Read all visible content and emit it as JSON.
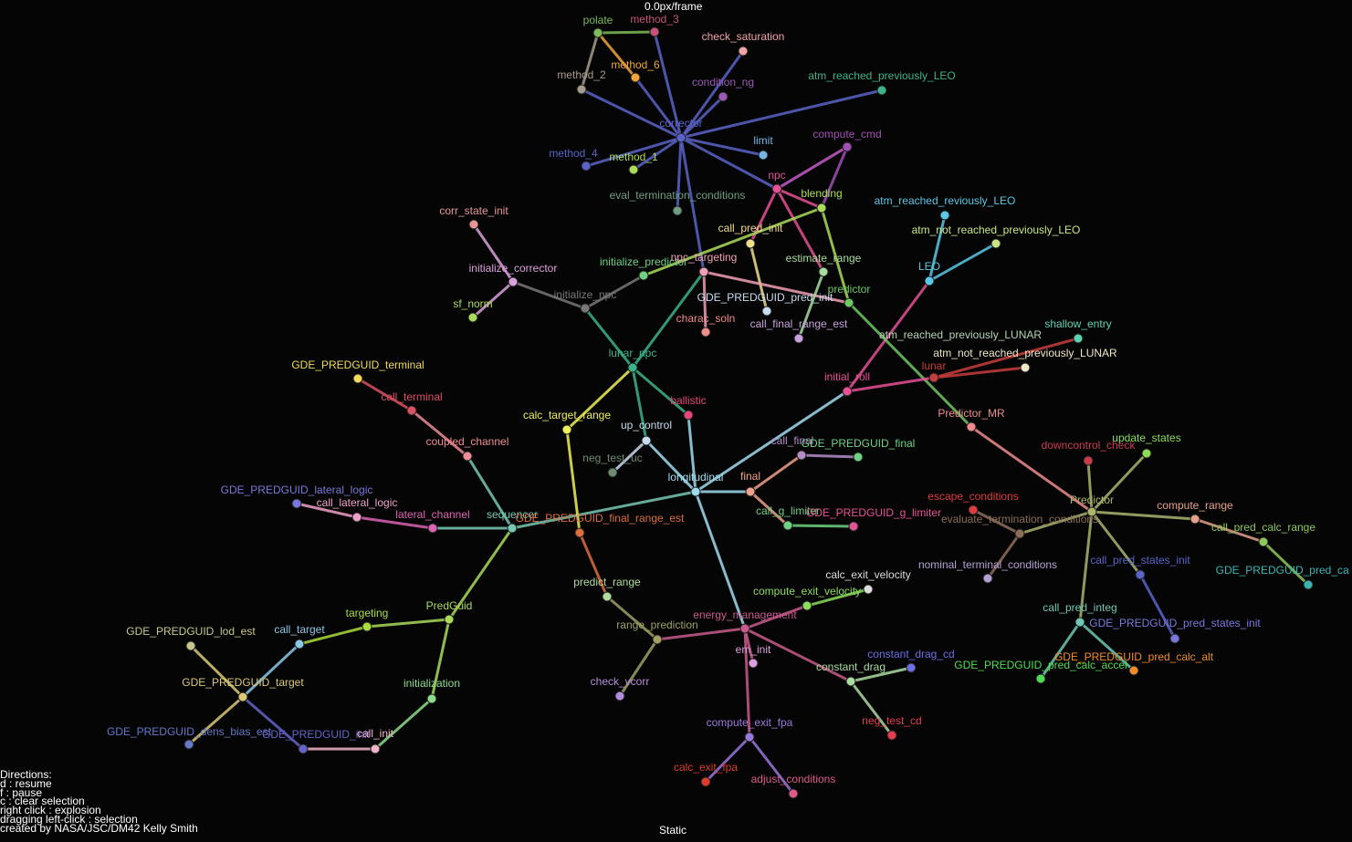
{
  "hud": {
    "speed": "0.0px/frame",
    "mode": "Static",
    "directions": [
      "Directions:",
      "d : resume",
      "f : pause",
      "c : clear selection",
      "right click : explosion",
      "dragging left-click : selection",
      "created by NASA/JSC/DM42 Kelly Smith"
    ]
  },
  "nodes": [
    {
      "id": "polate",
      "label": "polate",
      "color": "#7cba5a"
    },
    {
      "id": "method_3",
      "label": "method_3",
      "color": "#c8507a"
    },
    {
      "id": "check_saturation",
      "label": "check_saturation",
      "color": "#f2a4a8"
    },
    {
      "id": "method_6",
      "label": "method_6",
      "color": "#f0a43c"
    },
    {
      "id": "method_2",
      "label": "method_2",
      "color": "#a89c8c"
    },
    {
      "id": "condition_ng",
      "label": "condition_ng",
      "color": "#9a5ab4"
    },
    {
      "id": "atm_reached_previously_LEO",
      "label": "atm_reached_previously_LEO",
      "color": "#3cb48a"
    },
    {
      "id": "corrector",
      "label": "corrector",
      "color": "#5a64c8"
    },
    {
      "id": "compute_cmd",
      "label": "compute_cmd",
      "color": "#a050b4"
    },
    {
      "id": "limit",
      "label": "limit",
      "color": "#78b4e6"
    },
    {
      "id": "method_4",
      "label": "method_4",
      "color": "#5a64c8"
    },
    {
      "id": "method_1",
      "label": "method_1",
      "color": "#aadc5a"
    },
    {
      "id": "npc",
      "label": "npc",
      "color": "#e65096"
    },
    {
      "id": "blending",
      "label": "blending",
      "color": "#aadc5a"
    },
    {
      "id": "eval_termination_conditions",
      "label": "eval_termination_conditions",
      "color": "#6e9e82"
    },
    {
      "id": "atm_reached_reviously_LEO",
      "label": "atm_reached_reviously_LEO",
      "color": "#5ac8e6"
    },
    {
      "id": "corr_state_init",
      "label": "corr_state_init",
      "color": "#e69696"
    },
    {
      "id": "call_pred_init",
      "label": "call_pred_init",
      "color": "#f0dc8c"
    },
    {
      "id": "atm_not_reached_previously_LEO",
      "label": "atm_not_reached_previously_LEO",
      "color": "#c8e682"
    },
    {
      "id": "initialize_corrector",
      "label": "initialize_corrector",
      "color": "#dca0dc"
    },
    {
      "id": "initialize_predictor",
      "label": "initialize_predictor",
      "color": "#6ed282"
    },
    {
      "id": "npc_targeting",
      "label": "npc_targeting",
      "color": "#f0a0b4"
    },
    {
      "id": "estimate_range",
      "label": "estimate_range",
      "color": "#aadca0"
    },
    {
      "id": "LEO",
      "label": "LEO",
      "color": "#5ac8e6"
    },
    {
      "id": "predictor",
      "label": "predictor",
      "color": "#6ec864"
    },
    {
      "id": "initialize_npc",
      "label": "initialize_npc",
      "color": "#787878"
    },
    {
      "id": "sf_norm",
      "label": "sf_norm",
      "color": "#aadc5a"
    },
    {
      "id": "GDE_PREDGUID_pred_init",
      "label": "GDE_PREDGUID_pred_init",
      "color": "#c8dcf0"
    },
    {
      "id": "charac_soln",
      "label": "charac_soln",
      "color": "#f08c8c"
    },
    {
      "id": "call_final_range_est",
      "label": "call_final_range_est",
      "color": "#c8a0dc"
    },
    {
      "id": "shallow_entry",
      "label": "shallow_entry",
      "color": "#5ad2b4"
    },
    {
      "id": "lunar_npc",
      "label": "lunar_npc",
      "color": "#3cb48a"
    },
    {
      "id": "atm_reached_previously_LUNAR",
      "label": "atm_reached_previously_LUNAR",
      "color": "#b4d2b4"
    },
    {
      "id": "atm_not_reached_previously_LUNAR",
      "label": "atm_not_reached_previously_LUNAR",
      "color": "#f0e6c8"
    },
    {
      "id": "lunar",
      "label": "lunar",
      "color": "#c83c3c"
    },
    {
      "id": "GDE_PREDGUID_terminal",
      "label": "GDE_PREDGUID_terminal",
      "color": "#f0dc5a"
    },
    {
      "id": "initial_roll",
      "label": "initial_roll",
      "color": "#e65096"
    },
    {
      "id": "call_terminal",
      "label": "call_terminal",
      "color": "#dc5064"
    },
    {
      "id": "ballistic",
      "label": "ballistic",
      "color": "#e64678"
    },
    {
      "id": "Predictor_MR",
      "label": "Predictor_MR",
      "color": "#f08c8c"
    },
    {
      "id": "calc_target_range",
      "label": "calc_target_range",
      "color": "#f0f05a"
    },
    {
      "id": "up_control",
      "label": "up_control",
      "color": "#c8dcf0"
    },
    {
      "id": "update_states",
      "label": "update_states",
      "color": "#8cdc5a"
    },
    {
      "id": "downcontrol_check",
      "label": "downcontrol_check",
      "color": "#c83c50"
    },
    {
      "id": "coupled_channel",
      "label": "coupled_channel",
      "color": "#f08c96"
    },
    {
      "id": "call_final",
      "label": "call_final",
      "color": "#b48cc8"
    },
    {
      "id": "GDE_PREDGUID_final",
      "label": "GDE_PREDGUID_final",
      "color": "#6ed282"
    },
    {
      "id": "neg_test_uc",
      "label": "neg_test_uc",
      "color": "#6e8c6e"
    },
    {
      "id": "longitudinal",
      "label": "longitudinal",
      "color": "#a0dcf0"
    },
    {
      "id": "final",
      "label": "final",
      "color": "#f0a08c"
    },
    {
      "id": "Predictor",
      "label": "Predictor",
      "color": "#aab46e"
    },
    {
      "id": "GDE_PREDGUID_lateral_logic",
      "label": "GDE_PREDGUID_lateral_logic",
      "color": "#7878dc"
    },
    {
      "id": "call_lateral_logic",
      "label": "call_lateral_logic",
      "color": "#f0a0c8"
    },
    {
      "id": "escape_conditions",
      "label": "escape_conditions",
      "color": "#dc3c3c"
    },
    {
      "id": "lateral_channel",
      "label": "lateral_channel",
      "color": "#dc64b4"
    },
    {
      "id": "sequencer",
      "label": "sequencer",
      "color": "#78c8b4"
    },
    {
      "id": "GDE_PREDGUID_final_range_est",
      "label": "GDE_PREDGUID_final_range_est",
      "color": "#dc6e3c"
    },
    {
      "id": "call_g_limiter",
      "label": "call_g_limiter",
      "color": "#6ed282"
    },
    {
      "id": "GDE_PREDGUID_g_limiter",
      "label": "GDE_PREDGUID_g_limiter",
      "color": "#e65096"
    },
    {
      "id": "evaluate_termination_conditions",
      "label": "evaluate_termination_conditions",
      "color": "#8c6e5a"
    },
    {
      "id": "compute_range",
      "label": "compute_range",
      "color": "#e6a08c"
    },
    {
      "id": "call_pred_calc_range",
      "label": "call_pred_calc_range",
      "color": "#8cc85a"
    },
    {
      "id": "nominal_terminal_conditions",
      "label": "nominal_terminal_conditions",
      "color": "#b4a0d2"
    },
    {
      "id": "call_pred_states_init",
      "label": "call_pred_states_init",
      "color": "#5a64c8"
    },
    {
      "id": "GDE_PREDGUID_pred_calc_range",
      "label": "GDE_PREDGUID_pred_ca",
      "color": "#3cb4b4"
    },
    {
      "id": "calc_exit_velocity",
      "label": "calc_exit_velocity",
      "color": "#dcdcdc"
    },
    {
      "id": "predict_range",
      "label": "predict_range",
      "color": "#b4dca0"
    },
    {
      "id": "compute_exit_velocity",
      "label": "compute_exit_velocity",
      "color": "#8cdc5a"
    },
    {
      "id": "PredGuid",
      "label": "PredGuid",
      "color": "#aadc5a"
    },
    {
      "id": "call_pred_integ",
      "label": "call_pred_integ",
      "color": "#6ec8b4"
    },
    {
      "id": "energy_management",
      "label": "energy_management",
      "color": "#c85a8c"
    },
    {
      "id": "range_prediction",
      "label": "range_prediction",
      "color": "#a0a064"
    },
    {
      "id": "GDE_PREDGUID_pred_states_init",
      "label": "GDE_PREDGUID_pred_states_init",
      "color": "#7878dc"
    },
    {
      "id": "targeting",
      "label": "targeting",
      "color": "#aadc3c"
    },
    {
      "id": "GDE_PREDGUID_lod_est",
      "label": "GDE_PREDGUID_lod_est",
      "color": "#c8c88c"
    },
    {
      "id": "call_target",
      "label": "call_target",
      "color": "#8cc8e6"
    },
    {
      "id": "em_init",
      "label": "em_init",
      "color": "#dca0dc"
    },
    {
      "id": "constant_drag_cd",
      "label": "constant_drag_cd",
      "color": "#6e6ee6"
    },
    {
      "id": "GDE_PREDGUID_pred_calc_alt",
      "label": "GDE_PREDGUID_pred_calc_alt",
      "color": "#f08c28"
    },
    {
      "id": "constant_drag",
      "label": "constant_drag",
      "color": "#aadca0"
    },
    {
      "id": "GDE_PREDGUID_pred_calc_accel",
      "label": "GDE_PREDGUID_pred_calc_accel",
      "color": "#50dc50"
    },
    {
      "id": "check_vcorr",
      "label": "check_vcorr",
      "color": "#b48cdc"
    },
    {
      "id": "GDE_PREDGUID_target",
      "label": "GDE_PREDGUID_target",
      "color": "#dcc878"
    },
    {
      "id": "initialization",
      "label": "initialization",
      "color": "#8cdc8c"
    },
    {
      "id": "neg_test_cd",
      "label": "neg_test_cd",
      "color": "#e63c50"
    },
    {
      "id": "GDE_PREDGUID_dens_bias_est",
      "label": "GDE_PREDGUID_dens_bias_est",
      "color": "#6478c8"
    },
    {
      "id": "GDE_PREDGUID_init",
      "label": "GDE_PREDGUID_init",
      "color": "#6464c8"
    },
    {
      "id": "call_init",
      "label": "call_init",
      "color": "#f0b4c8"
    },
    {
      "id": "compute_exit_fpa",
      "label": "compute_exit_fpa",
      "color": "#9a78dc"
    },
    {
      "id": "calc_exit_fpa",
      "label": "calc_exit_fpa",
      "color": "#dc3c28"
    },
    {
      "id": "adjust_conditions",
      "label": "adjust_conditions",
      "color": "#dc5a8c"
    }
  ],
  "edges": [
    [
      "method_2",
      "polate"
    ],
    [
      "method_6",
      "polate"
    ],
    [
      "polate",
      "method_3"
    ],
    [
      "corrector",
      "method_3"
    ],
    [
      "corrector",
      "method_2"
    ],
    [
      "corrector",
      "method_6"
    ],
    [
      "corrector",
      "check_saturation"
    ],
    [
      "corrector",
      "condition_ng"
    ],
    [
      "corrector",
      "method_4"
    ],
    [
      "corrector",
      "method_1"
    ],
    [
      "corrector",
      "limit"
    ],
    [
      "corrector",
      "npc"
    ],
    [
      "corrector",
      "eval_termination_conditions"
    ],
    [
      "corrector",
      "npc_targeting"
    ],
    [
      "npc",
      "compute_cmd"
    ],
    [
      "compute_cmd",
      "blending"
    ],
    [
      "npc",
      "blending"
    ],
    [
      "npc",
      "call_pred_init"
    ],
    [
      "npc",
      "estimate_range"
    ],
    [
      "blending",
      "predictor"
    ],
    [
      "blending",
      "initialize_predictor"
    ],
    [
      "call_pred_init",
      "GDE_PREDGUID_pred_init"
    ],
    [
      "initialize_corrector",
      "corr_state_init"
    ],
    [
      "initialize_corrector",
      "sf_norm"
    ],
    [
      "initialize_npc",
      "initialize_corrector"
    ],
    [
      "initialize_npc",
      "initialize_predictor"
    ],
    [
      "lunar_npc",
      "initialize_npc"
    ],
    [
      "lunar_npc",
      "npc_targeting"
    ],
    [
      "npc_targeting",
      "charac_soln"
    ],
    [
      "npc_targeting",
      "predictor"
    ],
    [
      "estimate_range",
      "call_final_range_est"
    ],
    [
      "LEO",
      "atm_reached_reviously_LEO"
    ],
    [
      "LEO",
      "atm_not_reached_previously_LEO"
    ],
    [
      "initial_roll",
      "LEO"
    ],
    [
      "predictor",
      "Predictor_MR"
    ],
    [
      "lunar",
      "atm_not_reached_previously_LUNAR"
    ],
    [
      "lunar",
      "shallow_entry"
    ],
    [
      "initial_roll",
      "lunar"
    ],
    [
      "lunar_npc",
      "ballistic"
    ],
    [
      "lunar_npc",
      "up_control"
    ],
    [
      "calc_target_range",
      "lunar_npc"
    ],
    [
      "up_control",
      "neg_test_uc"
    ],
    [
      "longitudinal",
      "up_control"
    ],
    [
      "longitudinal",
      "ballistic"
    ],
    [
      "longitudinal",
      "initial_roll"
    ],
    [
      "longitudinal",
      "final"
    ],
    [
      "call_final",
      "GDE_PREDGUID_final"
    ],
    [
      "final",
      "call_final"
    ],
    [
      "final",
      "call_g_limiter"
    ],
    [
      "call_g_limiter",
      "GDE_PREDGUID_g_limiter"
    ],
    [
      "sequencer",
      "longitudinal"
    ],
    [
      "sequencer",
      "lateral_channel"
    ],
    [
      "sequencer",
      "coupled_channel"
    ],
    [
      "coupled_channel",
      "call_terminal"
    ],
    [
      "call_terminal",
      "GDE_PREDGUID_terminal"
    ],
    [
      "lateral_channel",
      "call_lateral_logic"
    ],
    [
      "call_lateral_logic",
      "GDE_PREDGUID_lateral_logic"
    ],
    [
      "calc_target_range",
      "GDE_PREDGUID_final_range_est"
    ],
    [
      "PredGuid",
      "sequencer"
    ],
    [
      "GDE_PREDGUID_final_range_est",
      "predict_range"
    ],
    [
      "range_prediction",
      "predict_range"
    ],
    [
      "range_prediction",
      "check_vcorr"
    ],
    [
      "energy_management",
      "range_prediction"
    ],
    [
      "longitudinal",
      "energy_management"
    ],
    [
      "energy_management",
      "compute_exit_velocity"
    ],
    [
      "compute_exit_velocity",
      "calc_exit_velocity"
    ],
    [
      "energy_management",
      "em_init"
    ],
    [
      "energy_management",
      "constant_drag"
    ],
    [
      "constant_drag",
      "constant_drag_cd"
    ],
    [
      "constant_drag",
      "neg_test_cd"
    ],
    [
      "energy_management",
      "compute_exit_fpa"
    ],
    [
      "compute_exit_fpa",
      "calc_exit_fpa"
    ],
    [
      "compute_exit_fpa",
      "adjust_conditions"
    ],
    [
      "PredGuid",
      "targeting"
    ],
    [
      "targeting",
      "call_target"
    ],
    [
      "call_target",
      "GDE_PREDGUID_target"
    ],
    [
      "GDE_PREDGUID_target",
      "GDE_PREDGUID_lod_est"
    ],
    [
      "GDE_PREDGUID_target",
      "GDE_PREDGUID_dens_bias_est"
    ],
    [
      "GDE_PREDGUID_init",
      "GDE_PREDGUID_target"
    ],
    [
      "call_init",
      "GDE_PREDGUID_init"
    ],
    [
      "initialization",
      "call_init"
    ],
    [
      "PredGuid",
      "initialization"
    ],
    [
      "Predictor_MR",
      "Predictor"
    ],
    [
      "Predictor",
      "downcontrol_check"
    ],
    [
      "Predictor",
      "update_states"
    ],
    [
      "Predictor",
      "compute_range"
    ],
    [
      "compute_range",
      "call_pred_calc_range"
    ],
    [
      "call_pred_calc_range",
      "GDE_PREDGUID_pred_calc_range"
    ],
    [
      "Predictor",
      "evaluate_termination_conditions"
    ],
    [
      "evaluate_termination_conditions",
      "escape_conditions"
    ],
    [
      "evaluate_termination_conditions",
      "nominal_terminal_conditions"
    ],
    [
      "Predictor",
      "call_pred_states_init"
    ],
    [
      "call_pred_states_init",
      "GDE_PREDGUID_pred_states_init"
    ],
    [
      "Predictor",
      "call_pred_integ"
    ],
    [
      "call_pred_integ",
      "GDE_PREDGUID_pred_calc_accel"
    ],
    [
      "call_pred_integ",
      "GDE_PREDGUID_pred_calc_alt"
    ],
    [
      "atm_reached_previously_LUNAR",
      "lunar"
    ],
    [
      "compute_cmd",
      "npc"
    ],
    [
      "corrector",
      "atm_reached_previously_LEO"
    ]
  ]
}
